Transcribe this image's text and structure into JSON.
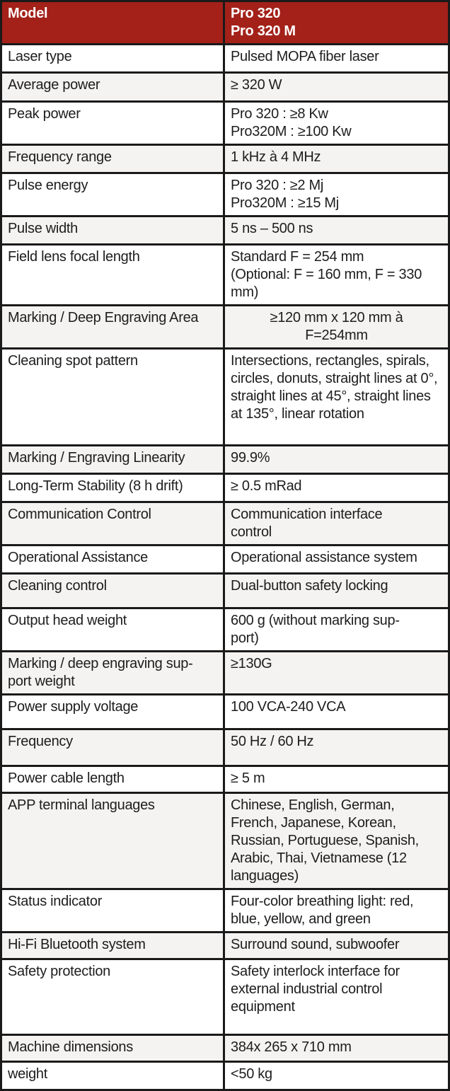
{
  "table": {
    "header": {
      "label": "Model",
      "value": "Pro 320\nPro 320 M"
    },
    "rows": [
      {
        "label": "Laser type",
        "value": "Pulsed MOPA fiber laser"
      },
      {
        "label": "Average power",
        "value": "≥ 320 W"
      },
      {
        "label": "Peak power",
        "value": "Pro 320 : ≥8 Kw\nPro320M : ≥100 Kw"
      },
      {
        "label": "Frequency range",
        "value": "1 kHz à 4 MHz"
      },
      {
        "label": "Pulse energy",
        "value": "Pro 320 : ≥2 Mj\nPro320M : ≥15 Mj"
      },
      {
        "label": "Pulse width",
        "value": "5 ns – 500 ns"
      },
      {
        "label": "Field lens focal length",
        "value": "Standard F = 254 mm\n(Optional: F = 160 mm, F = 330 mm)"
      },
      {
        "label": "Marking / Deep Engraving Area",
        "value": "≥120 mm x 120 mm à\nF=254mm"
      },
      {
        "label": "Cleaning spot pattern",
        "value": "Intersections, rectangles, spirals, circles, donuts, straight lines at 0°, straight lines at 45°, straight lines at 135°, linear rotation"
      },
      {
        "label": "Marking / Engraving Linearity",
        "value": "99.9%"
      },
      {
        "label": "Long-Term Stability (8 h drift)",
        "value": "≥ 0.5 mRad"
      },
      {
        "label": "Communication Control",
        "value": "Communication interface\ncontrol"
      },
      {
        "label": "Operational Assistance",
        "value": "Operational assistance system"
      },
      {
        "label": "Cleaning control",
        "value": "Dual-button safety locking"
      },
      {
        "label": "Output head weight",
        "value": "600 g (without marking sup-\nport)"
      },
      {
        "label": "Marking / deep engraving sup-\nport weight",
        "value": "≥130G"
      },
      {
        "label": "Power supply voltage",
        "value": "100 VCA-240 VCA"
      },
      {
        "label": "Frequency",
        "value": "50 Hz / 60 Hz"
      },
      {
        "label": "Power cable length",
        "value": "≥ 5 m"
      },
      {
        "label": "APP terminal languages",
        "value": "Chinese, English, German, French, Japanese, Korean, Russian, Portuguese, Spanish, Arabic, Thai, Vietnamese (12 languages)"
      },
      {
        "label": "Status indicator",
        "value": "Four-color breathing light: red,\nblue, yellow, and green"
      },
      {
        "label": "Hi-Fi Bluetooth system",
        "value": "Surround sound, subwoofer"
      },
      {
        "label": "Safety protection",
        "value": "Safety interlock interface for external industrial control equipment"
      },
      {
        "label": "Machine dimensions",
        "value": "384x 265 x 710 mm"
      },
      {
        "label": "weight",
        "value": "<50 kg"
      }
    ]
  },
  "colors": {
    "header_bg": "#A32119",
    "header_text": "#FFFFFF",
    "stripe_bg": "#F4F3F1",
    "border": "#1A1A1A",
    "text": "#1D1D1D"
  }
}
